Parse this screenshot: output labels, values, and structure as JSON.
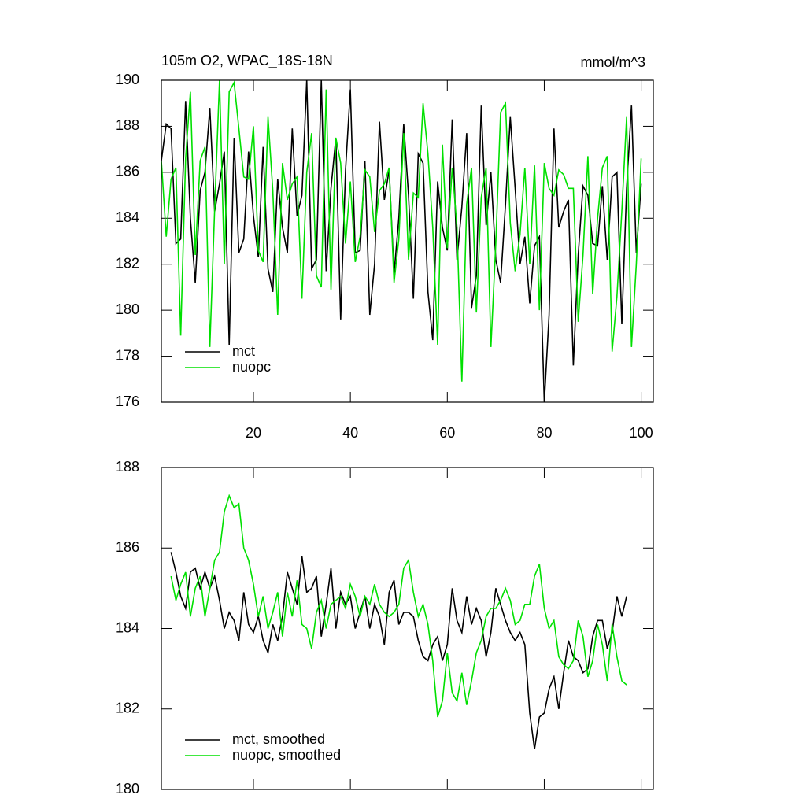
{
  "chart_data": [
    {
      "type": "line",
      "title": "105m O2, WPAC_18S-18N",
      "subtitle": "mmol/m^3",
      "x": [
        1,
        2,
        3,
        4,
        5,
        6,
        7,
        8,
        9,
        10,
        11,
        12,
        13,
        14,
        15,
        16,
        17,
        18,
        19,
        20,
        21,
        22,
        23,
        24,
        25,
        26,
        27,
        28,
        29,
        30,
        31,
        32,
        33,
        34,
        35,
        36,
        37,
        38,
        39,
        40,
        41,
        42,
        43,
        44,
        45,
        46,
        47,
        48,
        49,
        50,
        51,
        52,
        53,
        54,
        55,
        56,
        57,
        58,
        59,
        60,
        61,
        62,
        63,
        64,
        65,
        66,
        67,
        68,
        69,
        70,
        71,
        72,
        73,
        74,
        75,
        76,
        77,
        78,
        79,
        80,
        81,
        82,
        83,
        84,
        85,
        86,
        87,
        88,
        89,
        90,
        91,
        92,
        93,
        94,
        95,
        96,
        97,
        98,
        99,
        100
      ],
      "series": [
        {
          "name": "mct",
          "color": "#000000",
          "values": [
            186.5,
            188.1,
            187.9,
            182.9,
            183.1,
            189.1,
            184.0,
            181.2,
            185.2,
            186.0,
            188.8,
            184.3,
            185.5,
            186.9,
            178.5,
            187.5,
            182.5,
            183.1,
            186.9,
            184.1,
            182.3,
            187.1,
            181.8,
            180.8,
            185.7,
            183.6,
            182.5,
            187.9,
            184.1,
            185.0,
            190.0,
            181.8,
            182.2,
            190.0,
            181.7,
            185.3,
            187.5,
            179.6,
            186.1,
            189.6,
            182.5,
            182.6,
            186.5,
            179.8,
            182.0,
            188.2,
            184.8,
            186.1,
            181.6,
            184.0,
            188.1,
            185.0,
            180.5,
            186.8,
            186.4,
            180.8,
            178.7,
            185.6,
            183.6,
            182.6,
            188.3,
            182.2,
            184.5,
            187.7,
            180.1,
            181.5,
            188.9,
            183.7,
            186.0,
            182.2,
            181.2,
            184.6,
            188.4,
            185.3,
            182.0,
            183.2,
            180.3,
            182.8,
            183.2,
            176.0,
            179.8,
            187.9,
            183.6,
            184.3,
            184.8,
            177.6,
            182.4,
            185.4,
            185.0,
            182.9,
            182.8,
            185.4,
            182.2,
            185.8,
            186.0,
            179.4,
            185.3,
            188.9,
            182.5,
            185.5
          ]
        },
        {
          "name": "nuopc",
          "color": "#00e000",
          "values": [
            186.5,
            183.2,
            185.7,
            186.2,
            178.9,
            186.6,
            189.5,
            182.4,
            186.5,
            187.1,
            178.4,
            184.4,
            190.0,
            182.0,
            189.5,
            189.9,
            187.9,
            185.8,
            185.7,
            188.0,
            182.6,
            182.1,
            188.4,
            185.2,
            179.8,
            186.4,
            184.8,
            185.5,
            185.8,
            180.5,
            186.0,
            187.7,
            181.5,
            181.0,
            189.6,
            180.9,
            187.5,
            186.4,
            182.9,
            185.6,
            182.1,
            183.2,
            186.1,
            185.8,
            183.4,
            185.2,
            185.5,
            186.2,
            181.2,
            183.1,
            187.7,
            182.2,
            185.1,
            184.9,
            189.0,
            186.8,
            183.6,
            178.5,
            187.2,
            182.7,
            186.2,
            183.6,
            176.9,
            184.6,
            186.2,
            179.9,
            184.9,
            186.2,
            178.4,
            182.9,
            188.6,
            189.0,
            183.8,
            181.7,
            183.3,
            186.2,
            182.0,
            186.3,
            180.0,
            186.4,
            185.3,
            185.0,
            186.1,
            185.9,
            185.3,
            185.3,
            179.5,
            182.4,
            186.7,
            180.7,
            184.0,
            186.2,
            186.7,
            178.2,
            180.6,
            184.3,
            188.4,
            178.4,
            182.0,
            186.6
          ]
        }
      ],
      "xlim": [
        1,
        102.5
      ],
      "xticks": [
        20,
        40,
        60,
        80,
        100
      ],
      "ylim": [
        176,
        190
      ],
      "yticks": [
        176,
        178,
        180,
        182,
        184,
        186,
        188,
        190
      ],
      "legend": "lower left"
    },
    {
      "type": "line",
      "x": [
        3,
        4,
        5,
        6,
        7,
        8,
        9,
        10,
        11,
        12,
        13,
        14,
        15,
        16,
        17,
        18,
        19,
        20,
        21,
        22,
        23,
        24,
        25,
        26,
        27,
        28,
        29,
        30,
        31,
        32,
        33,
        34,
        35,
        36,
        37,
        38,
        39,
        40,
        41,
        42,
        43,
        44,
        45,
        46,
        47,
        48,
        49,
        50,
        51,
        52,
        53,
        54,
        55,
        56,
        57,
        58,
        59,
        60,
        61,
        62,
        63,
        64,
        65,
        66,
        67,
        68,
        69,
        70,
        71,
        72,
        73,
        74,
        75,
        76,
        77,
        78,
        79,
        80,
        81,
        82,
        83,
        84,
        85,
        86,
        87,
        88,
        89,
        90,
        91,
        92,
        93,
        94,
        95,
        96,
        97
      ],
      "series": [
        {
          "name": "mct, smoothed",
          "color": "#000000",
          "values": [
            185.9,
            185.4,
            184.8,
            184.5,
            185.4,
            185.5,
            185.0,
            185.4,
            185.0,
            185.3,
            184.7,
            184.0,
            184.4,
            184.2,
            183.7,
            184.9,
            184.1,
            183.9,
            184.3,
            183.7,
            183.4,
            184.1,
            183.7,
            184.3,
            185.4,
            185.0,
            184.6,
            185.8,
            184.9,
            185.0,
            185.3,
            183.8,
            184.6,
            185.5,
            184.0,
            184.9,
            184.6,
            184.8,
            184.0,
            184.4,
            184.8,
            184.0,
            184.6,
            184.3,
            183.6,
            184.9,
            185.2,
            184.1,
            184.4,
            184.4,
            184.3,
            183.7,
            183.3,
            183.2,
            183.6,
            183.8,
            183.2,
            183.6,
            185.0,
            184.2,
            183.9,
            184.8,
            184.1,
            184.5,
            184.2,
            183.3,
            183.9,
            185.0,
            184.6,
            184.2,
            183.9,
            183.7,
            183.9,
            183.6,
            181.9,
            181.0,
            181.8,
            181.9,
            182.5,
            182.8,
            182.0,
            182.9,
            183.7,
            183.3,
            183.2,
            182.9,
            183.0,
            183.8,
            184.2,
            184.2,
            183.5,
            183.9,
            184.8,
            184.3,
            184.8
          ]
        },
        {
          "name": "nuopc, smoothed",
          "color": "#00e000",
          "values": [
            185.3,
            184.7,
            185.1,
            185.4,
            184.3,
            185.0,
            185.3,
            184.3,
            185.0,
            185.7,
            185.9,
            186.9,
            187.3,
            187.0,
            187.1,
            186.0,
            185.7,
            185.1,
            184.3,
            184.8,
            184.0,
            184.4,
            184.9,
            183.8,
            184.9,
            184.3,
            185.2,
            184.1,
            184.0,
            183.5,
            184.4,
            184.7,
            184.0,
            184.6,
            184.7,
            184.8,
            184.5,
            185.1,
            184.8,
            184.3,
            184.8,
            184.6,
            185.1,
            184.6,
            184.4,
            184.3,
            184.4,
            184.6,
            185.5,
            185.7,
            184.9,
            184.3,
            184.6,
            184.1,
            183.2,
            181.8,
            182.2,
            183.4,
            182.4,
            182.2,
            182.9,
            182.1,
            182.7,
            183.4,
            183.7,
            184.3,
            184.5,
            184.5,
            184.7,
            185.0,
            184.7,
            184.1,
            184.2,
            184.6,
            184.6,
            185.3,
            185.6,
            184.5,
            184.0,
            184.2,
            183.3,
            183.1,
            183.0,
            183.2,
            184.2,
            183.8,
            182.8,
            183.2,
            184.1,
            183.6,
            182.7,
            184.1,
            183.3,
            182.7,
            182.6
          ]
        }
      ],
      "xlim": [
        1,
        102.5
      ],
      "ylim": [
        180,
        188
      ],
      "yticks": [
        180,
        182,
        184,
        186,
        188
      ],
      "legend": "lower left"
    }
  ]
}
